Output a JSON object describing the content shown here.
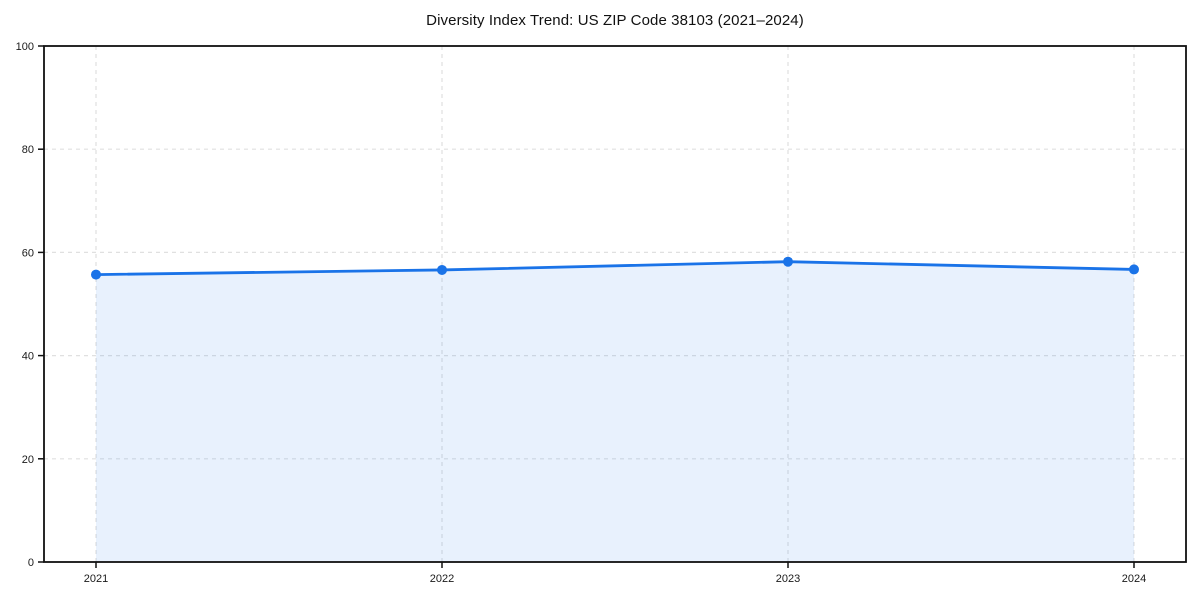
{
  "chart": {
    "title": "Diversity Index Trend: US ZIP Code 38103 (2021–2024)"
  },
  "chart_data": {
    "type": "area",
    "title": "Diversity Index Trend: US ZIP Code 38103 (2021–2024)",
    "categories": [
      "2021",
      "2022",
      "2023",
      "2024"
    ],
    "series": [
      {
        "name": "Diversity Index",
        "values": [
          55.7,
          56.6,
          58.2,
          56.7
        ]
      }
    ],
    "xlabel": "",
    "ylabel": "",
    "ylim": [
      0,
      100
    ],
    "yticks": [
      0,
      20,
      40,
      60,
      80,
      100
    ],
    "grid": true,
    "grid_style": "dashed",
    "legend_position": "none",
    "colors": {
      "line": "#1a73e8",
      "marker": "#1a73e8",
      "fill": "#1a73e8",
      "fill_opacity": 0.1,
      "gridline": "#e0e0e0",
      "spine": "#111111",
      "tick_label": "#1a1a1a"
    }
  }
}
